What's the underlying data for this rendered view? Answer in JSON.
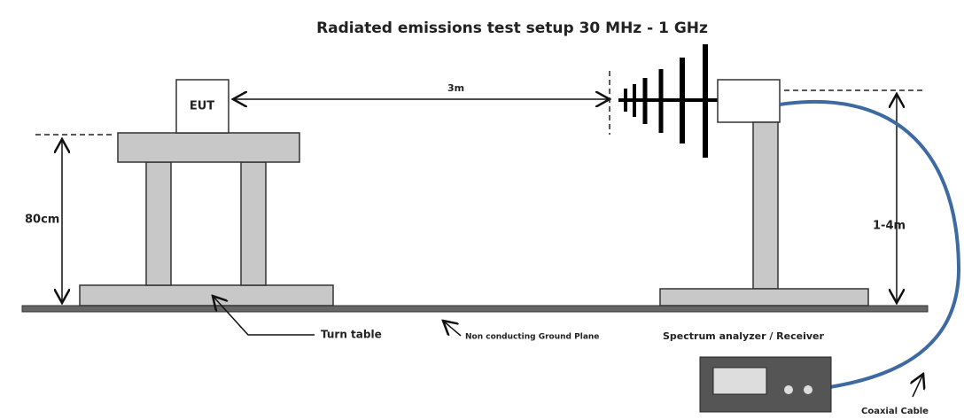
{
  "header": {
    "title": "Radiated emissions test setup 30 MHz - 1 GHz"
  },
  "labels": {
    "eut": "EUT",
    "distance": "3m",
    "table_height": "80cm",
    "antenna_height": "1-4m",
    "turn_table": "Turn table",
    "ground_plane": "Non conducting Ground Plane",
    "receiver": "Spectrum analyzer / Receiver",
    "cable": "Coaxial Cable"
  }
}
